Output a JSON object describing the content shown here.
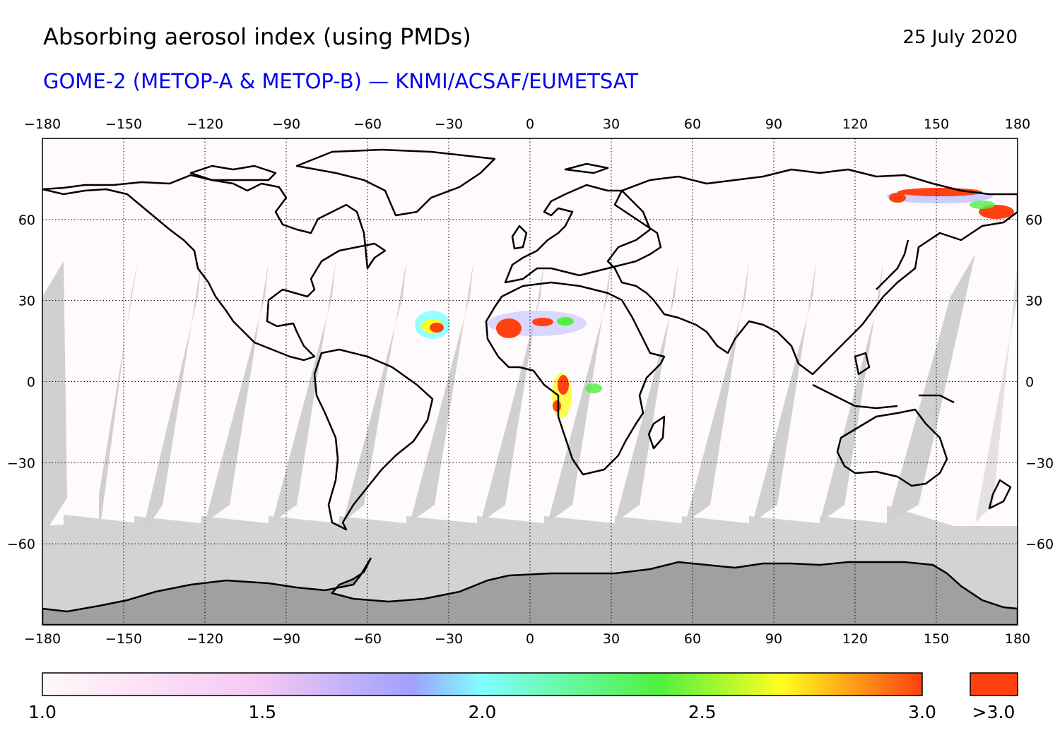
{
  "header": {
    "title": "Absorbing aerosol index (using PMDs)",
    "date": "25 July 2020",
    "subtitle": "GOME-2 (METOP-A & METOP-B) — KNMI/ACSAF/EUMETSAT"
  },
  "map": {
    "projection": "plate carree",
    "lon_ticks": [
      "−180",
      "−150",
      "−120",
      "−90",
      "−60",
      "−30",
      "0",
      "30",
      "60",
      "90",
      "120",
      "150",
      "180"
    ],
    "lat_ticks": [
      "60",
      "30",
      "0",
      "−30",
      "−60"
    ],
    "lon_range": [
      -180,
      180
    ],
    "lat_range": [
      -90,
      90
    ],
    "gridlines": "dotted",
    "colors": {
      "no_data_polar": "#d3d3d3",
      "land_dark": "#a0a0a0",
      "orbit_gap": "#d0d0d0",
      "orbit_gap_land": "#a0a0a0",
      "coast": "#000000"
    },
    "aerosol_plumes": [
      {
        "region": "Eastern Siberia",
        "level": ">3.0"
      },
      {
        "region": "Sahara / West Africa",
        "level": ">3.0"
      },
      {
        "region": "North Atlantic (Saharan dust)",
        "level": ">3.0"
      },
      {
        "region": "Central Africa (biomass burning)",
        "level": ">3.0"
      }
    ]
  },
  "colorbar": {
    "min": 1.0,
    "max": 3.0,
    "labels": [
      "1.0",
      "1.5",
      "2.0",
      "2.5",
      "3.0"
    ],
    "overflow_label": ">3.0",
    "overflow_color": "#ff4010",
    "stops": [
      "#fff8f8",
      "#f8c8f4",
      "#a0a0ff",
      "#80ffff",
      "#50f040",
      "#ffff20",
      "#ff4010"
    ]
  }
}
